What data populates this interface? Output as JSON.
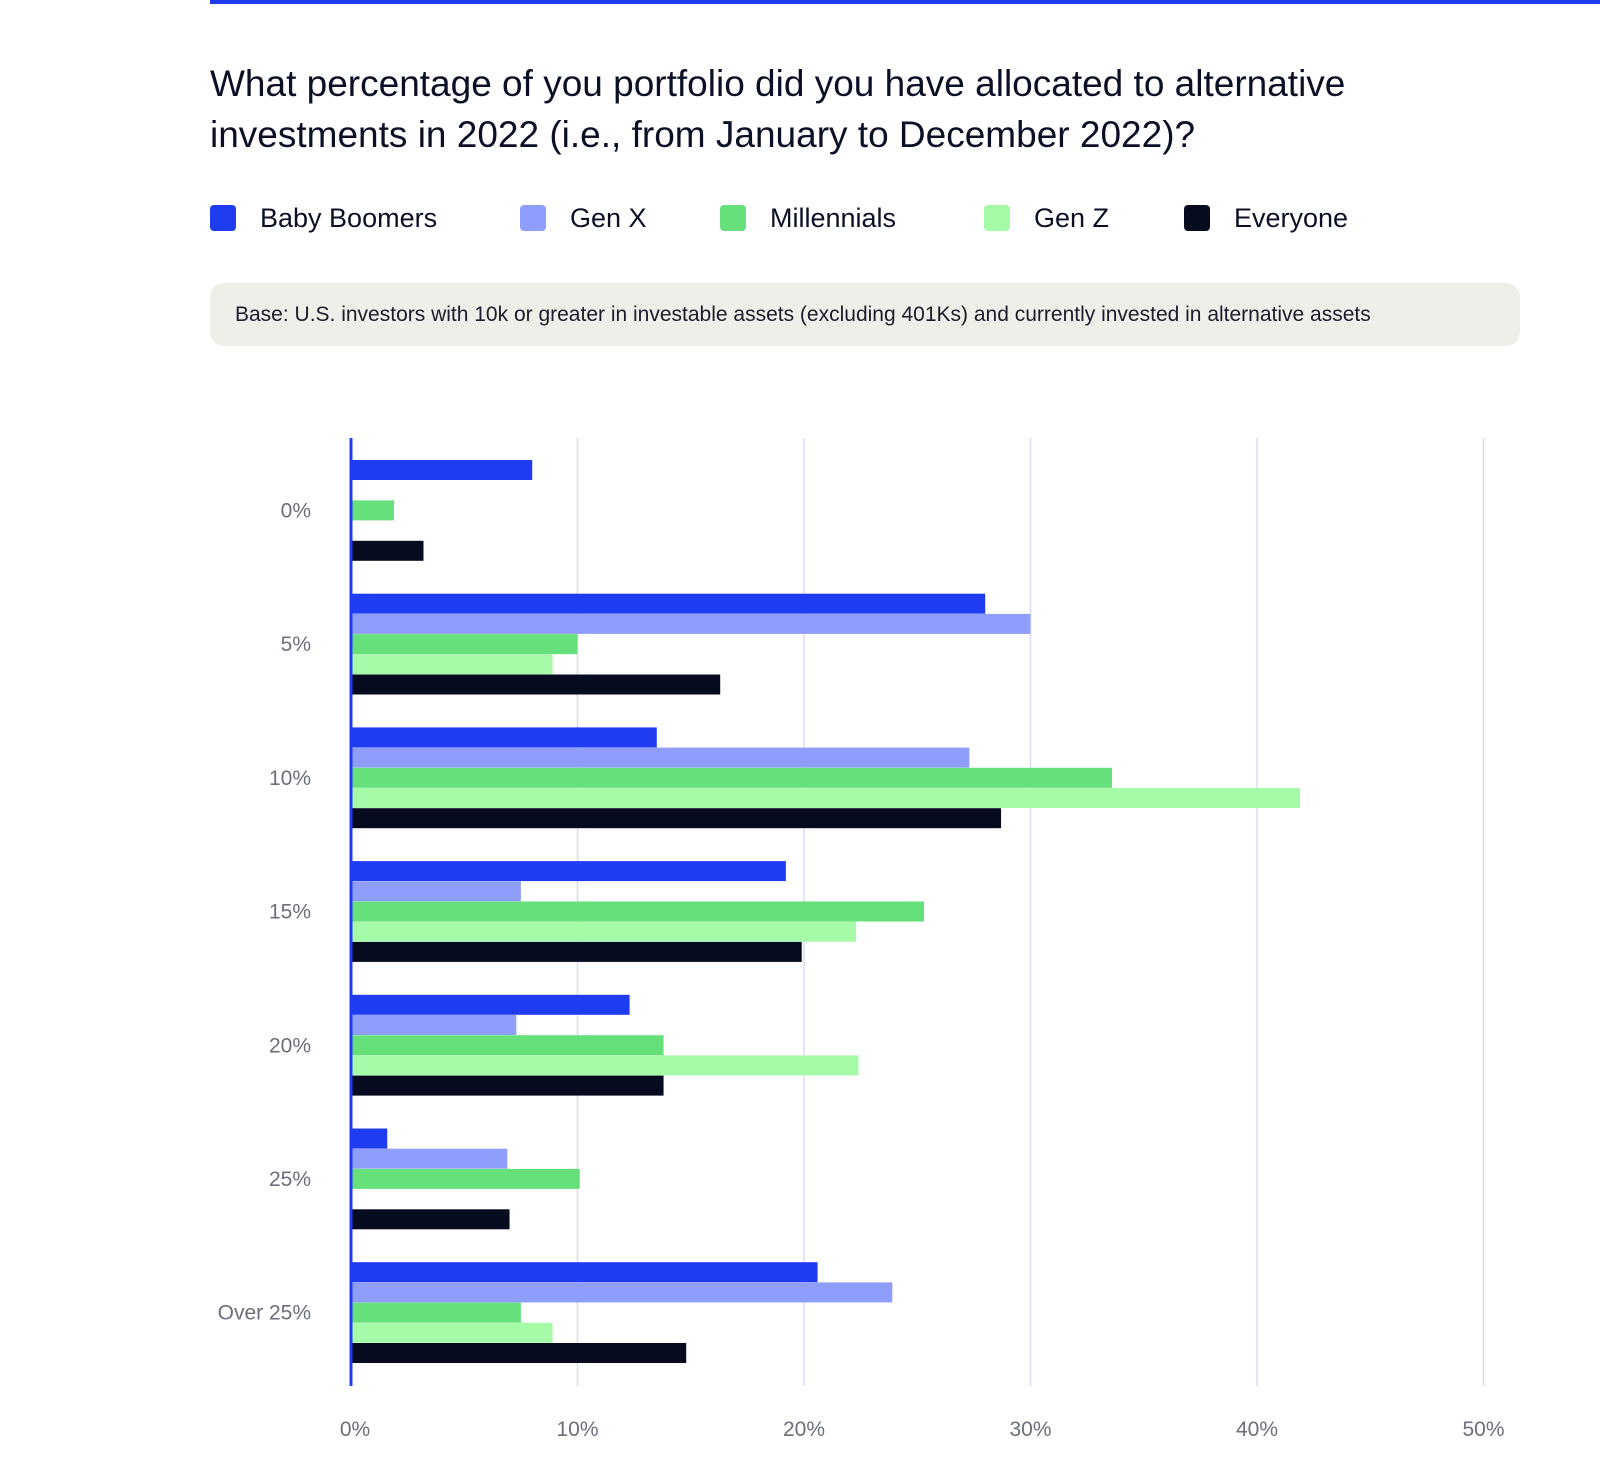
{
  "title": "What percentage of you portfolio did you have allocated to alternative investments in 2022 (i.e., from January to December 2022)?",
  "base_note": "Base: U.S. investors with 10k or greater in investable assets (excluding 401Ks) and currently invested in alternative assets",
  "colors": {
    "accent": "#1f3cf0",
    "baby_boomers": "#1f3cf0",
    "gen_x": "#8f9dfb",
    "millennials": "#66e07a",
    "gen_z": "#a6fba8",
    "everyone": "#060b1f",
    "grid": "#d8dcf5",
    "axis": "#1f3cf0",
    "tick_text": "#6b6f7c"
  },
  "chart_data": {
    "type": "bar",
    "orientation": "horizontal",
    "title": "What percentage of you portfolio did you have allocated to alternative investments in 2022 (i.e., from January to December 2022)?",
    "categories": [
      "0%",
      "5%",
      "10%",
      "15%",
      "20%",
      "25%",
      "Over 25%"
    ],
    "x_ticks": [
      "0%",
      "10%",
      "20%",
      "30%",
      "40%",
      "50%"
    ],
    "xlim": [
      0,
      50
    ],
    "grid": true,
    "legend_position": "top-left",
    "series": [
      {
        "name": "Baby Boomers",
        "color": "#1f3cf0",
        "values": [
          8,
          28,
          13.5,
          19.2,
          12.3,
          1.6,
          20.6
        ]
      },
      {
        "name": "Gen X",
        "color": "#8f9dfb",
        "values": [
          0,
          30,
          27.3,
          7.5,
          7.3,
          6.9,
          23.9
        ]
      },
      {
        "name": "Millennials",
        "color": "#66e07a",
        "values": [
          1.9,
          10,
          33.6,
          25.3,
          13.8,
          10.1,
          7.5
        ]
      },
      {
        "name": "Gen Z",
        "color": "#a6fba8",
        "values": [
          0,
          8.9,
          41.9,
          22.3,
          22.4,
          0,
          8.9
        ]
      },
      {
        "name": "Everyone",
        "color": "#060b1f",
        "values": [
          3.2,
          16.3,
          28.7,
          19.9,
          13.8,
          7,
          14.8
        ]
      }
    ]
  }
}
